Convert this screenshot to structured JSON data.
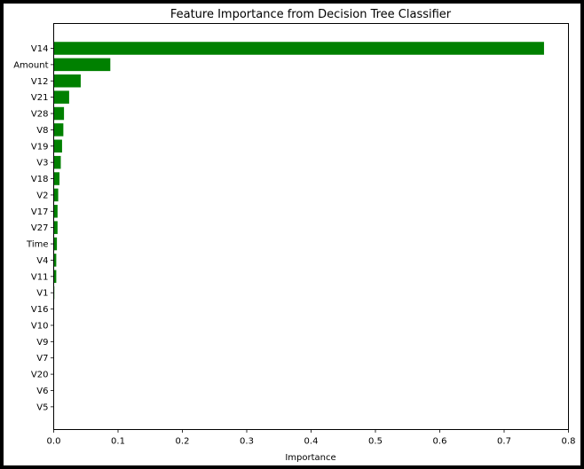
{
  "chart_data": {
    "type": "bar",
    "orientation": "horizontal",
    "title": "Feature Importance from Decision Tree Classifier",
    "xlabel": "Importance",
    "ylabel": "",
    "xlim": [
      0,
      0.8
    ],
    "xticks": [
      "0.0",
      "0.1",
      "0.2",
      "0.3",
      "0.4",
      "0.5",
      "0.6",
      "0.7",
      "0.8"
    ],
    "grid": false,
    "bar_color": "#008000",
    "categories": [
      "V14",
      "Amount",
      "V12",
      "V21",
      "V28",
      "V8",
      "V19",
      "V3",
      "V18",
      "V2",
      "V17",
      "V27",
      "Time",
      "V4",
      "V11",
      "V1",
      "V16",
      "V10",
      "V9",
      "V7",
      "V20",
      "V6",
      "V5"
    ],
    "values": [
      0.762,
      0.088,
      0.042,
      0.024,
      0.016,
      0.015,
      0.013,
      0.011,
      0.009,
      0.007,
      0.006,
      0.006,
      0.005,
      0.004,
      0.004,
      0.001,
      0.0005,
      0.0005,
      0.0005,
      0.0005,
      0.0003,
      0.0003,
      0.0002
    ]
  }
}
